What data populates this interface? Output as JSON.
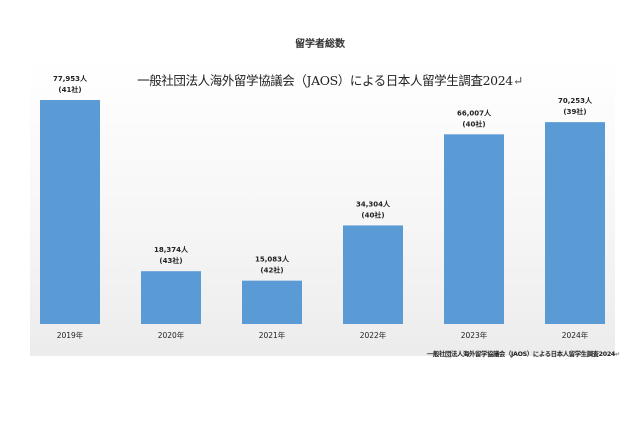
{
  "chart_data": {
    "type": "bar",
    "title": "留学者総数",
    "subtitle": "一般社団法人海外留学協議会（JAOS）による日本人留学生調査2024",
    "subtitle_mark": "↵",
    "source": "一般社団法人海外留学協議会（JAOS）による日本人留学生調査2024",
    "source_mark": "↵",
    "categories": [
      "2019年",
      "2020年",
      "2021年",
      "2022年",
      "2023年",
      "2024年"
    ],
    "values": [
      77953,
      18374,
      15083,
      34304,
      66007,
      70253
    ],
    "value_labels": [
      "77,953人",
      "18,374人",
      "15,083人",
      "34,304人",
      "66,007人",
      "70,253人"
    ],
    "company_labels": [
      "(41社)",
      "(43社)",
      "(42社)",
      "(40社)",
      "(40社)",
      "(39社)"
    ],
    "series_color": "#5b9bd5",
    "xlabel": "",
    "ylabel": "",
    "ylim": [
      0,
      77953
    ],
    "grid": false,
    "legend": "none"
  }
}
